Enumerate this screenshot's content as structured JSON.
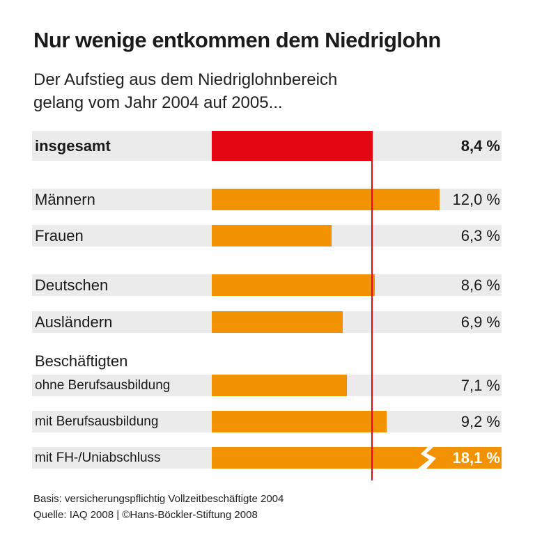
{
  "title": "Nur wenige entkommen dem Niedriglohn",
  "subtitle_line1": "Der Aufstieg aus dem Niedriglohnbereich",
  "subtitle_line2": "gelang vom Jahr 2004 auf 2005...",
  "group_label": "Beschäftigten",
  "footer_line1": "Basis: versicherungspflichtig Vollzeitbeschäftigte 2004",
  "footer_line2": "Quelle: IAQ 2008 | ©Hans-Böckler-Stiftung 2008",
  "colors": {
    "highlight": "#e30613",
    "bar": "#f39200",
    "row_background": "#ebebeb",
    "reference_line": "#e30613"
  },
  "chart_data": {
    "type": "bar",
    "orientation": "horizontal",
    "unit": "%",
    "reference_line_value": 8.4,
    "categories": [
      "insgesamt",
      "Männern",
      "Frauen",
      "Deutschen",
      "Ausländern",
      "ohne Berufsausbildung",
      "mit Berufsausbildung",
      "mit FH-/Uniabschluss"
    ],
    "values": [
      8.4,
      12.0,
      6.3,
      8.6,
      6.9,
      7.1,
      9.2,
      18.1
    ],
    "value_labels": [
      "8,4 %",
      "12,0 %",
      "6,3 %",
      "8,6 %",
      "6,9 %",
      "7,1 %",
      "9,2 %",
      "18,1 %"
    ],
    "broken_bar": "mit FH-/Uniabschluss"
  }
}
